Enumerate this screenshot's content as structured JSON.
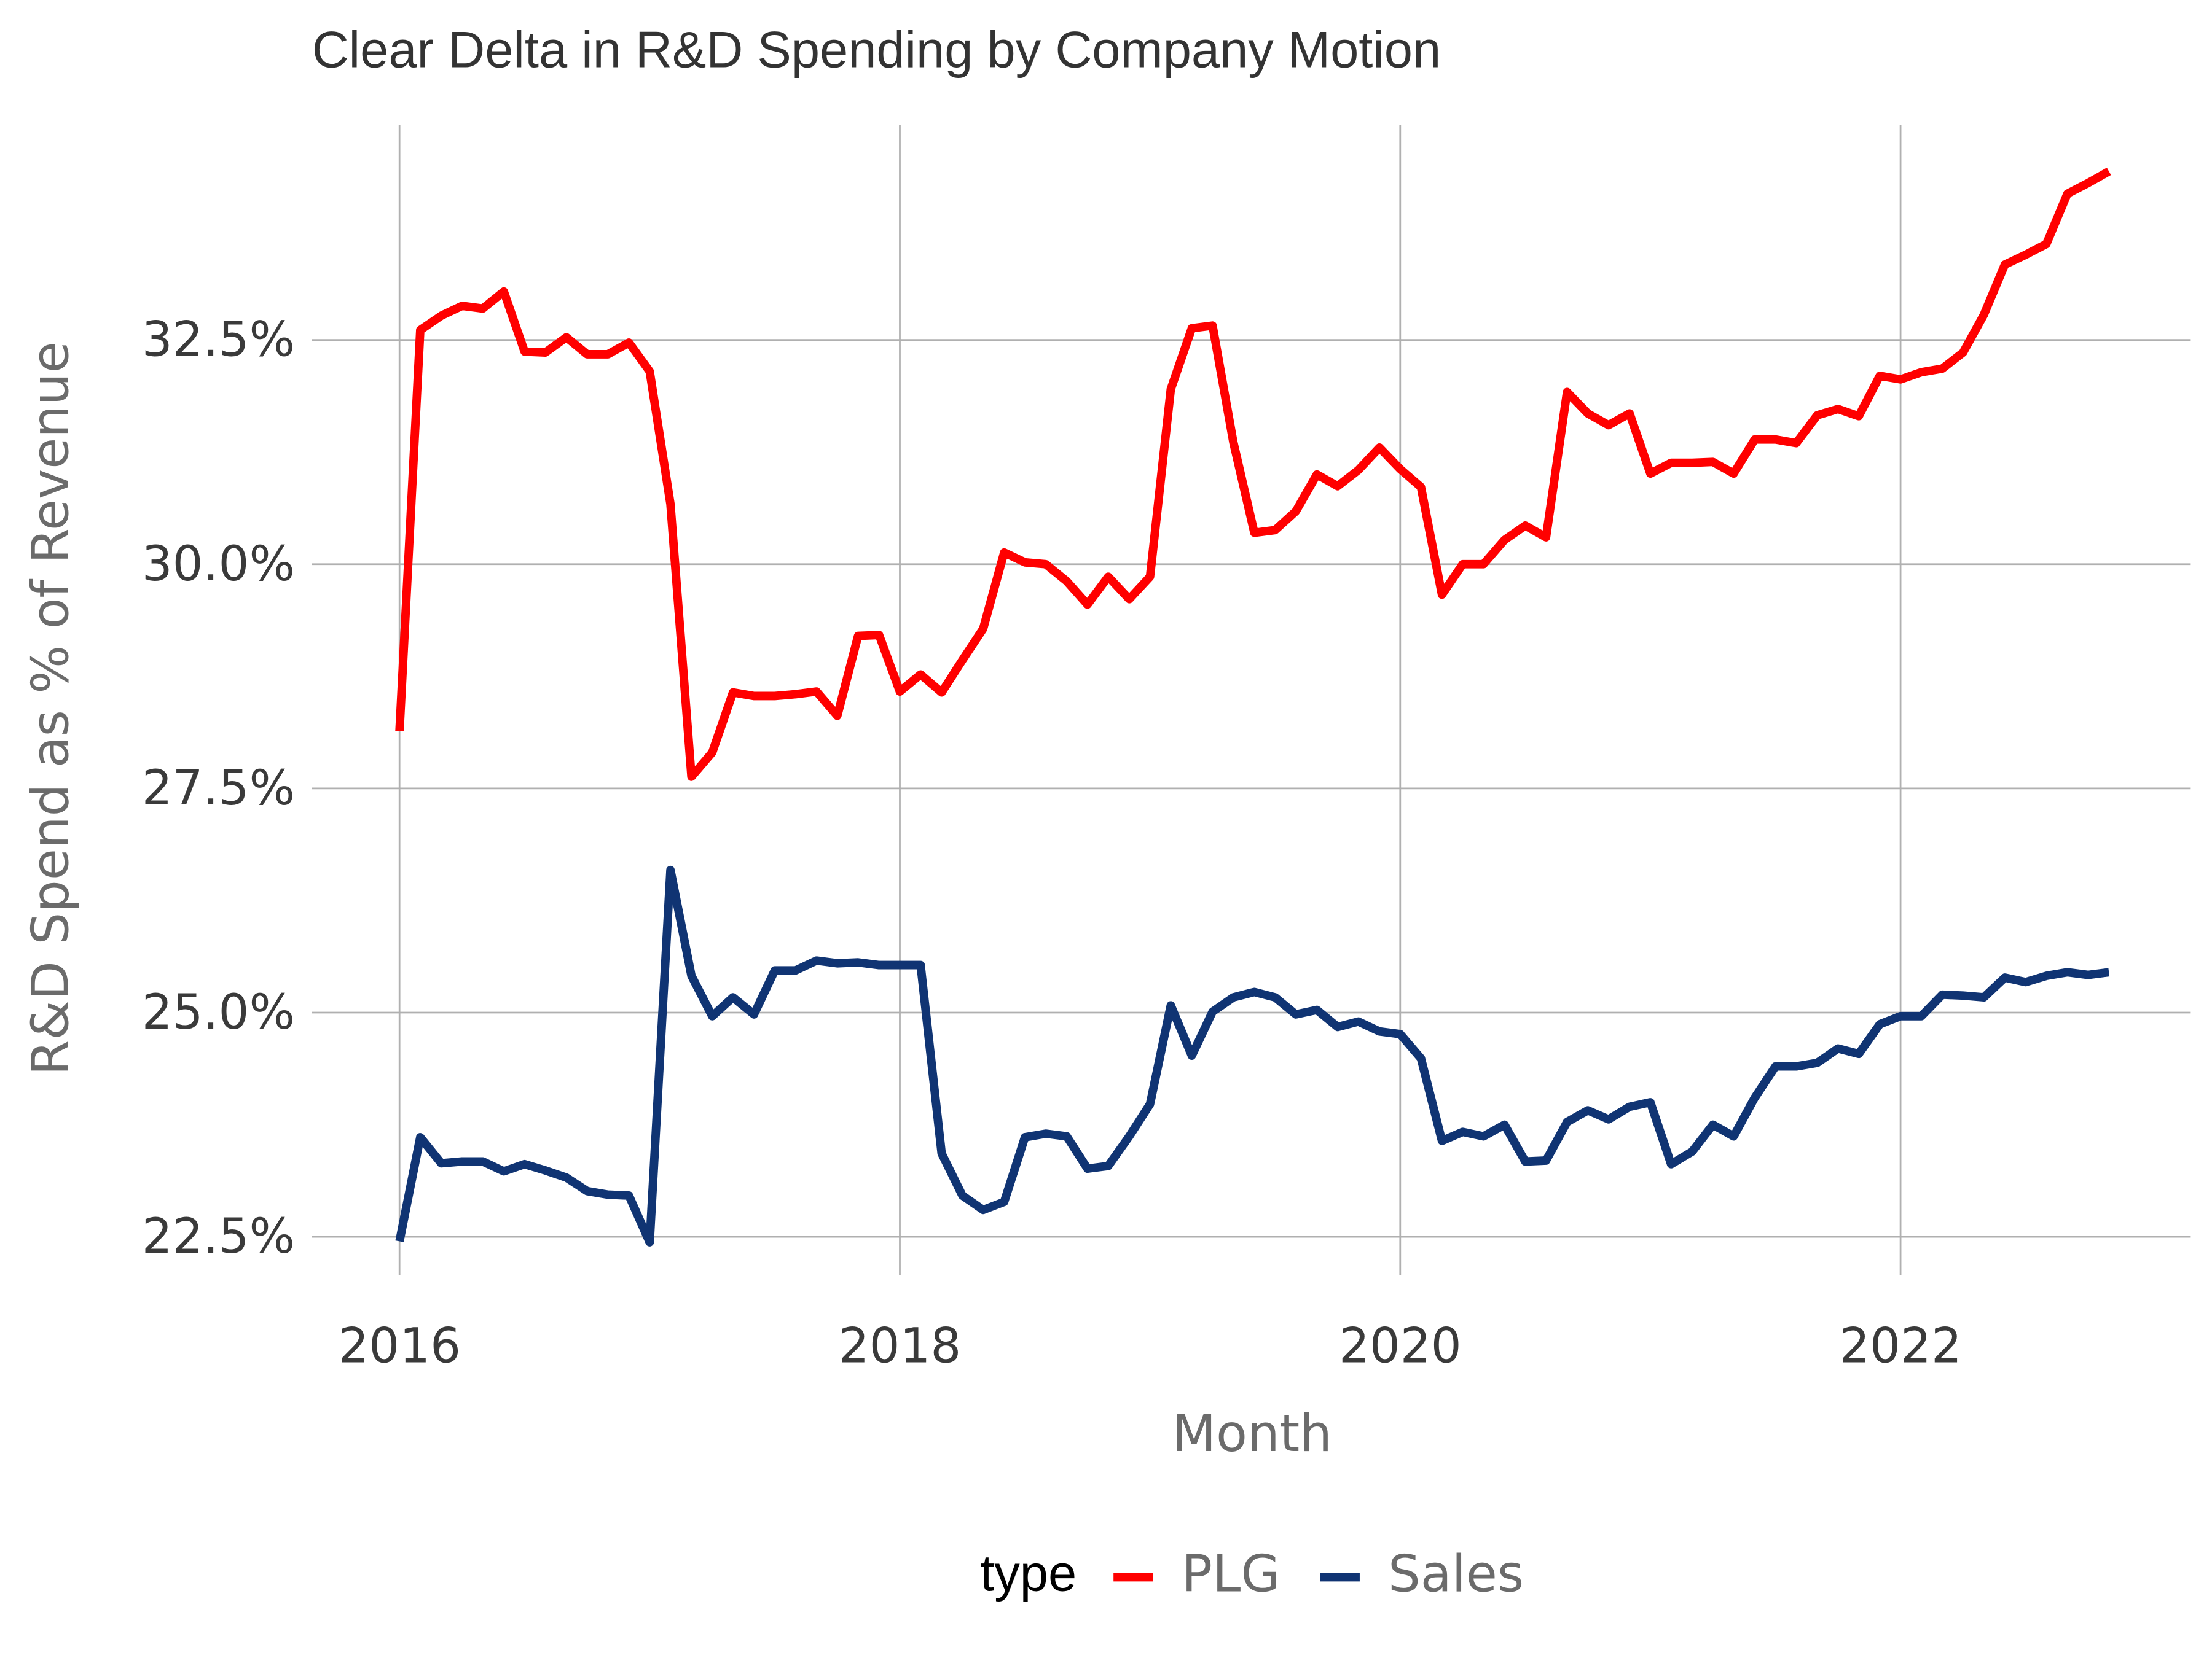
{
  "chart_data": {
    "type": "line",
    "title": "Clear Delta in R&D Spending by Company Motion",
    "x_label": "Month",
    "y_label": "R&D Spend as % of Revenue",
    "legend_title": "type",
    "legend_position": "bottom",
    "grid": true,
    "xlim": [
      2015.65,
      2023.16
    ],
    "xticks": [
      2016,
      2018,
      2020,
      2022
    ],
    "ylim": [
      22.07,
      34.9
    ],
    "yticks": [
      {
        "value": 22.5,
        "label": "22.5%"
      },
      {
        "value": 25,
        "label": "25.0%"
      },
      {
        "value": 27.5,
        "label": "27.5%"
      },
      {
        "value": 30,
        "label": "30.0%"
      },
      {
        "value": 32.5,
        "label": "32.5%"
      }
    ],
    "x": [
      2016,
      2016.083,
      2016.167,
      2016.25,
      2016.333,
      2016.417,
      2016.5,
      2016.583,
      2016.667,
      2016.75,
      2016.833,
      2016.917,
      2017,
      2017.083,
      2017.167,
      2017.25,
      2017.333,
      2017.417,
      2017.5,
      2017.583,
      2017.667,
      2017.75,
      2017.833,
      2017.917,
      2018,
      2018.083,
      2018.167,
      2018.25,
      2018.333,
      2018.417,
      2018.5,
      2018.583,
      2018.667,
      2018.75,
      2018.833,
      2018.917,
      2019,
      2019.083,
      2019.167,
      2019.25,
      2019.333,
      2019.417,
      2019.5,
      2019.583,
      2019.667,
      2019.75,
      2019.833,
      2019.917,
      2020,
      2020.083,
      2020.167,
      2020.25,
      2020.333,
      2020.417,
      2020.5,
      2020.583,
      2020.667,
      2020.75,
      2020.833,
      2020.917,
      2021,
      2021.083,
      2021.167,
      2021.25,
      2021.333,
      2021.417,
      2021.5,
      2021.583,
      2021.667,
      2021.75,
      2021.833,
      2021.917,
      2022,
      2022.083,
      2022.167,
      2022.25,
      2022.333,
      2022.417,
      2022.5,
      2022.583,
      2022.667,
      2022.75,
      2022.833
    ],
    "series": [
      {
        "name": "PLG",
        "color": "#ff0000",
        "values": [
          28.14,
          32.61,
          32.77,
          32.88,
          32.85,
          33.04,
          32.37,
          32.36,
          32.53,
          32.34,
          32.34,
          32.47,
          32.15,
          30.67,
          27.63,
          27.9,
          28.57,
          28.53,
          28.53,
          28.55,
          28.58,
          28.31,
          29.2,
          29.21,
          28.58,
          28.77,
          28.57,
          28.93,
          29.28,
          30.13,
          30.02,
          30.0,
          29.81,
          29.55,
          29.86,
          29.61,
          29.86,
          31.95,
          32.63,
          32.66,
          31.36,
          30.35,
          30.38,
          30.59,
          31.0,
          30.87,
          31.05,
          31.3,
          31.06,
          30.86,
          29.66,
          30.0,
          30.0,
          30.27,
          30.43,
          30.3,
          31.92,
          31.68,
          31.55,
          31.68,
          31.01,
          31.13,
          31.13,
          31.14,
          31.01,
          31.39,
          31.39,
          31.35,
          31.66,
          31.73,
          31.65,
          32.1,
          32.06,
          32.14,
          32.18,
          32.36,
          32.78,
          33.34,
          33.45,
          33.57,
          34.13,
          34.25,
          34.38
        ]
      },
      {
        "name": "Sales",
        "color": "#103473",
        "values": [
          22.45,
          23.61,
          23.32,
          23.34,
          23.34,
          23.23,
          23.31,
          23.24,
          23.16,
          23.01,
          22.97,
          22.96,
          22.44,
          26.59,
          25.41,
          24.96,
          25.17,
          24.98,
          25.47,
          25.47,
          25.58,
          25.55,
          25.56,
          25.53,
          25.53,
          25.53,
          23.43,
          22.96,
          22.8,
          22.89,
          23.61,
          23.65,
          23.62,
          23.26,
          23.29,
          23.62,
          23.98,
          25.08,
          24.52,
          25.01,
          25.17,
          25.23,
          25.17,
          24.98,
          25.03,
          24.84,
          24.9,
          24.79,
          24.76,
          24.49,
          23.57,
          23.67,
          23.62,
          23.75,
          23.34,
          23.35,
          23.78,
          23.91,
          23.81,
          23.95,
          24.0,
          23.31,
          23.45,
          23.75,
          23.62,
          24.05,
          24.4,
          24.4,
          24.44,
          24.6,
          24.54,
          24.87,
          24.96,
          24.96,
          25.2,
          25.19,
          25.17,
          25.39,
          25.34,
          25.41,
          25.45,
          25.42,
          25.45
        ]
      }
    ]
  }
}
